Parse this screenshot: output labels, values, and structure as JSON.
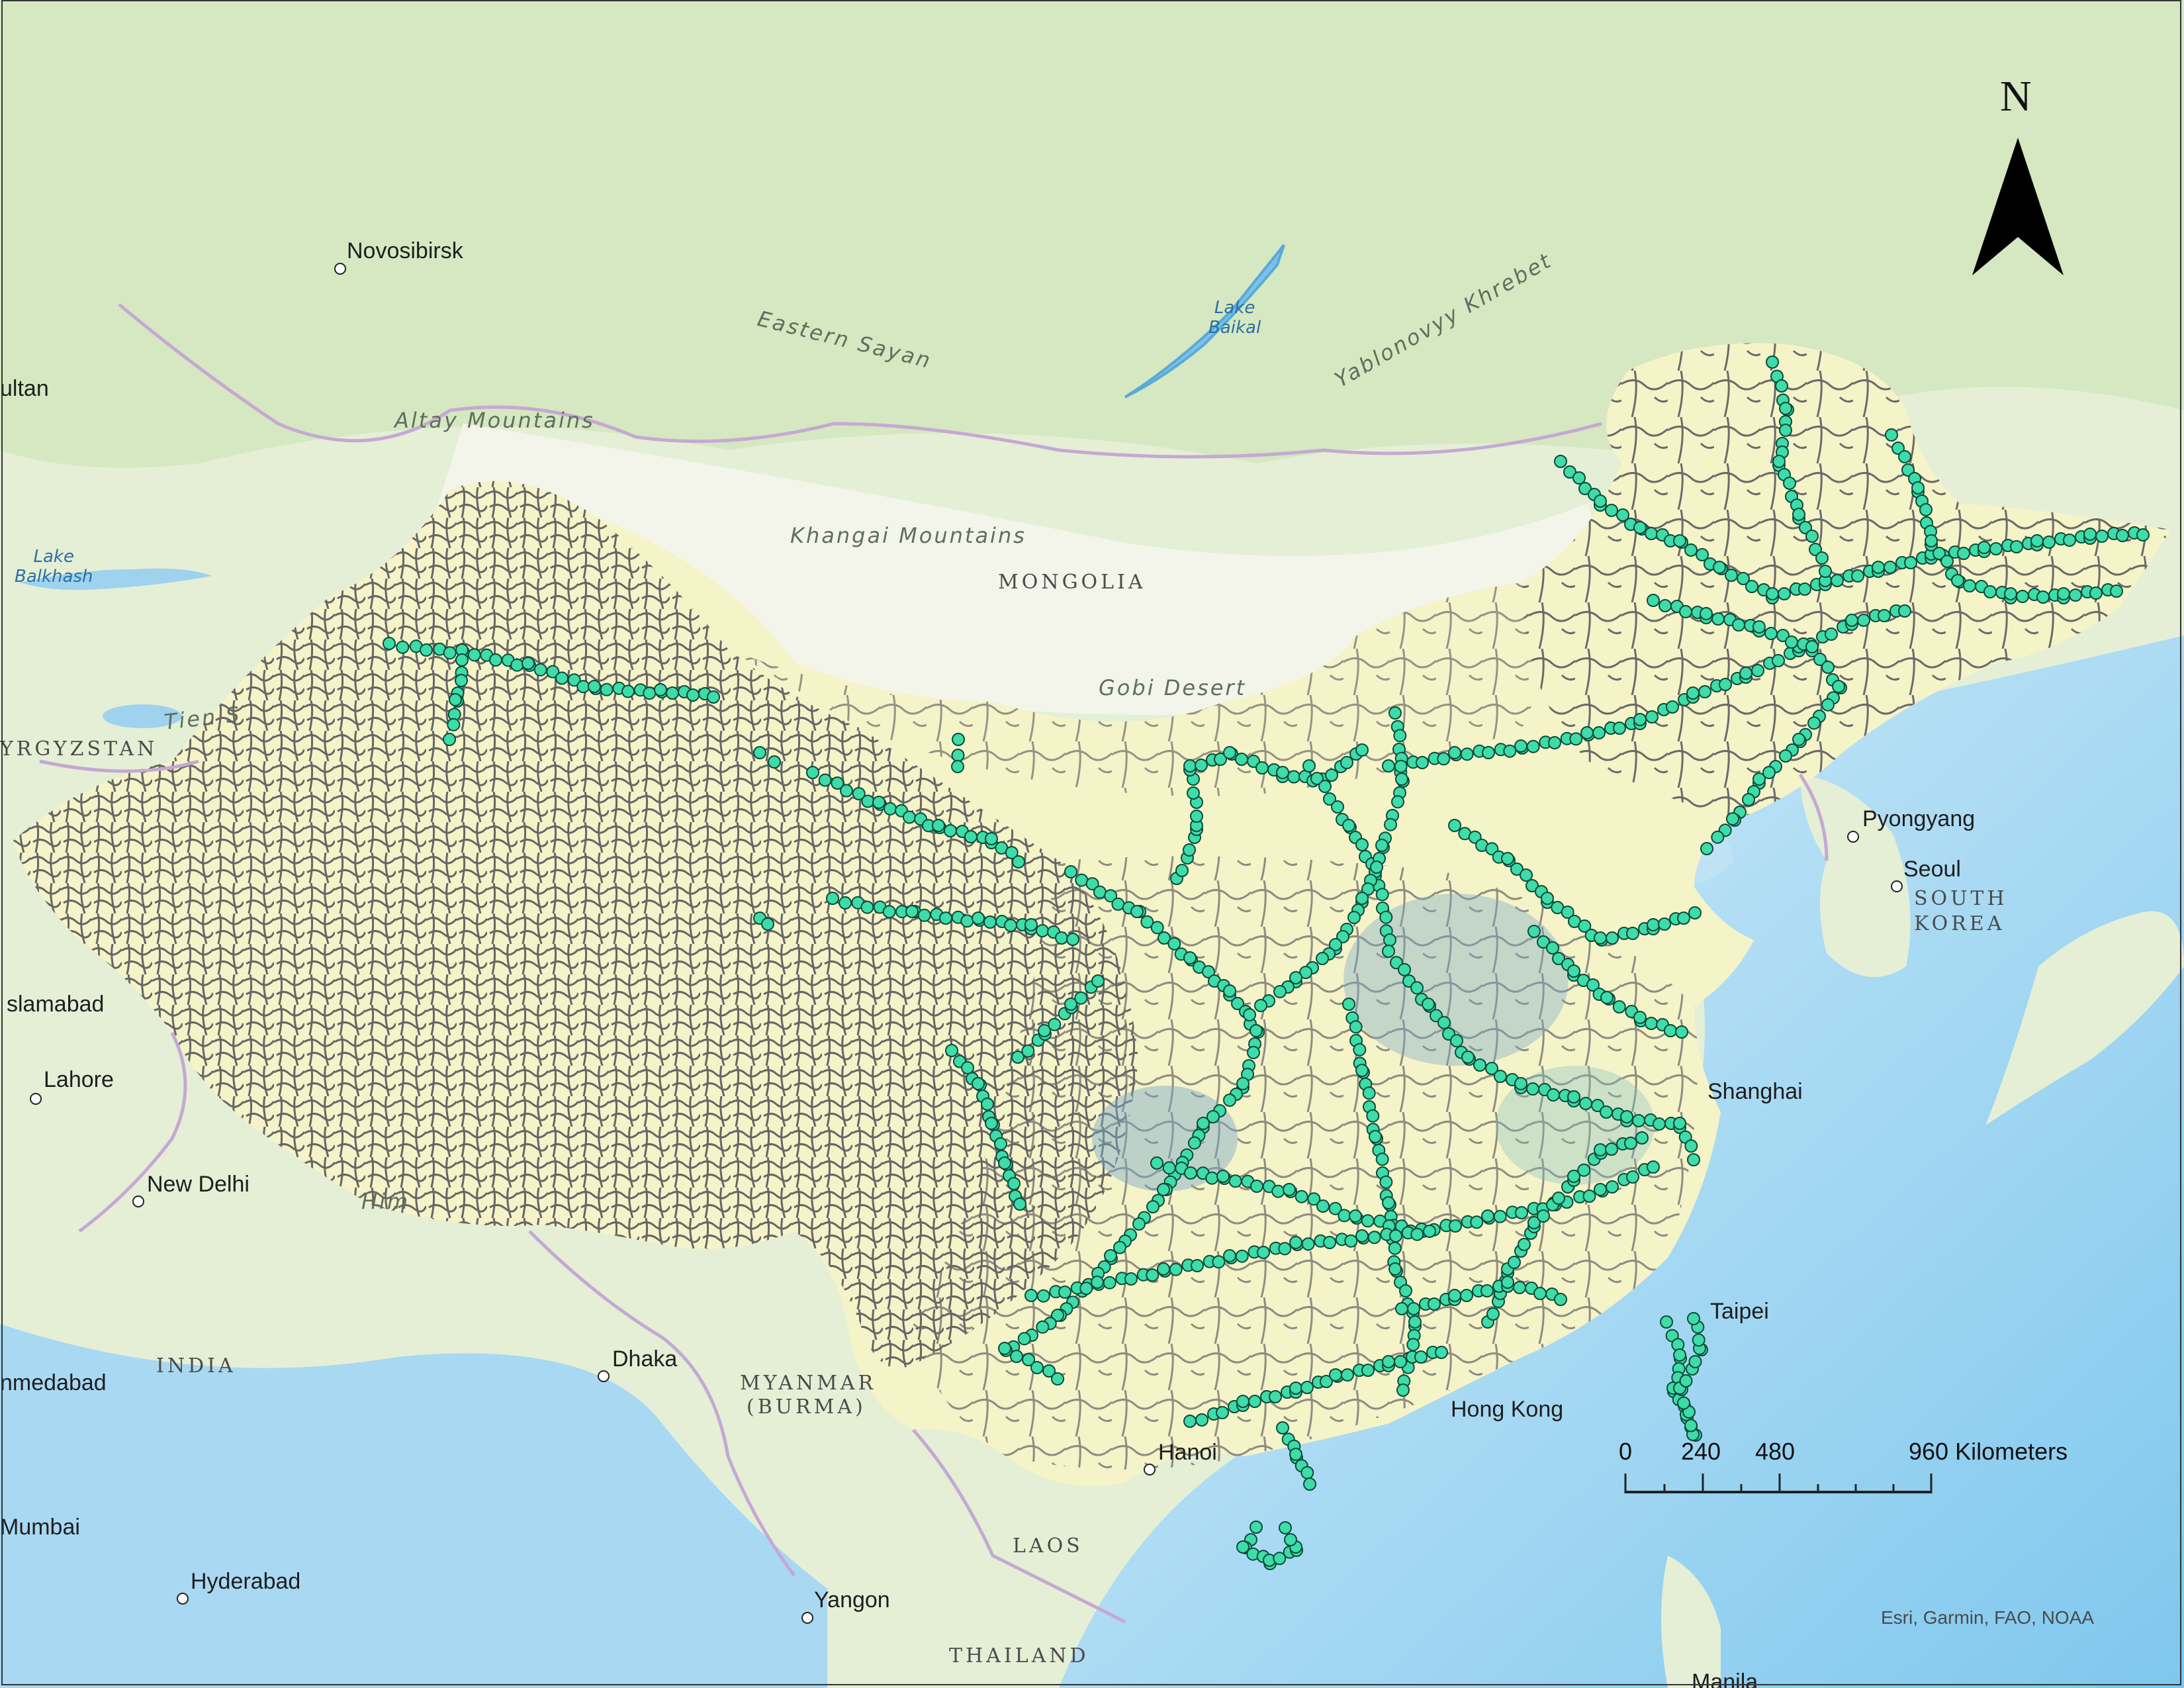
{
  "colors": {
    "land": "#e6f0d8",
    "forest": "#cde3b6",
    "lowland": "#f2f6e6",
    "sea": "#bfe3f5",
    "deep_sea": "#8cccee",
    "china_fill": "#f5f3c8",
    "river_network": "#6b6b6b",
    "gauge_fill": "#3ddca8",
    "gauge_stroke": "#0d4a3a",
    "border": "#c9a9d6"
  },
  "cities": [
    {
      "name": "Novosibirsk"
    },
    {
      "name": "ultan"
    },
    {
      "name": "slamabad"
    },
    {
      "name": "Lahore"
    },
    {
      "name": "New Delhi"
    },
    {
      "name": "nmedabad"
    },
    {
      "name": "Mumbai"
    },
    {
      "name": "Hyderabad"
    },
    {
      "name": "Dhaka"
    },
    {
      "name": "Yangon"
    },
    {
      "name": "Hanoi"
    },
    {
      "name": "Hong Kong"
    },
    {
      "name": "Taipei"
    },
    {
      "name": "Shanghai"
    },
    {
      "name": "Pyongyang"
    },
    {
      "name": "Seoul"
    },
    {
      "name": "Manila"
    }
  ],
  "countries": [
    {
      "name": "MONGOLIA"
    },
    {
      "name": "INDIA"
    },
    {
      "name": "MYANMAR"
    },
    {
      "name": "(BURMA)"
    },
    {
      "name": "LAOS"
    },
    {
      "name": "THAILAND"
    },
    {
      "name": "SOUTH"
    },
    {
      "name": "KOREA"
    },
    {
      "name": "YRGYZSTAN"
    }
  ],
  "terrain_labels": [
    {
      "name": "Eastern Sayan"
    },
    {
      "name": "Yablonovyy Khrebet"
    },
    {
      "name": "Altay Mountains"
    },
    {
      "name": "Khangai Mountains"
    },
    {
      "name": "Gobi Desert"
    },
    {
      "name": "Tien S"
    },
    {
      "name": "Him"
    }
  ],
  "water_labels": [
    {
      "line1": "Lake",
      "line2": "Baikal"
    },
    {
      "line1": "Lake",
      "line2": "Balkhash"
    }
  ],
  "north_arrow": {
    "label": "N"
  },
  "scale_bar": {
    "ticks": [
      "0",
      "240",
      "480",
      "960 Kilometers"
    ]
  },
  "credit": "Esri, Garmin, FAO, NOAA"
}
